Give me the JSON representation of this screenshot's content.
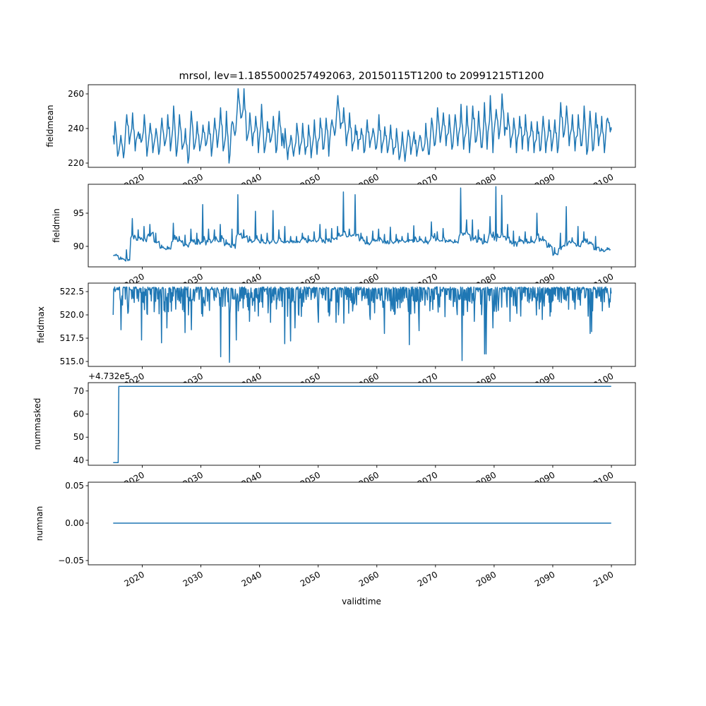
{
  "chart_data": {
    "type": "line",
    "title": "mrsol, lev=1.1855000257492063, 20150115T1200 to 20991215T1200",
    "xlabel": "validtime",
    "xlim": [
      2010.79,
      2104.09
    ],
    "xticks": [
      2020,
      2030,
      2040,
      2050,
      2060,
      2070,
      2080,
      2090,
      2100
    ],
    "xtick_labels": [
      "2020",
      "2030",
      "2040",
      "2050",
      "2060",
      "2070",
      "2080",
      "2090",
      "2100"
    ],
    "line_color": "#1f77b4",
    "subplots": [
      {
        "ylabel": "fieldmean",
        "ylim": [
          217.55,
          265.3
        ],
        "yticks": [
          220,
          240,
          260
        ],
        "ytick_labels": [
          "220",
          "240",
          "260"
        ],
        "encoding": "yearly_peak_trough",
        "start_value": 236,
        "end_value": 239,
        "yearly": [
          [
            244,
            224
          ],
          [
            236,
            223
          ],
          [
            248,
            231
          ],
          [
            249,
            227
          ],
          [
            238,
            232
          ],
          [
            248,
            224
          ],
          [
            243,
            226
          ],
          [
            240,
            225
          ],
          [
            246,
            230
          ],
          [
            248,
            227
          ],
          [
            253,
            224
          ],
          [
            248,
            228
          ],
          [
            240,
            220
          ],
          [
            250,
            228
          ],
          [
            244,
            227
          ],
          [
            242,
            230
          ],
          [
            244,
            224
          ],
          [
            246,
            229
          ],
          [
            252,
            227
          ],
          [
            250,
            220
          ],
          [
            244,
            236
          ],
          [
            263,
            246
          ],
          [
            263,
            233
          ],
          [
            249,
            230
          ],
          [
            247,
            226
          ],
          [
            254,
            226
          ],
          [
            244,
            232
          ],
          [
            247,
            226
          ],
          [
            250,
            230
          ],
          [
            240,
            222
          ],
          [
            236,
            224
          ],
          [
            243,
            225
          ],
          [
            243,
            225
          ],
          [
            242,
            223
          ],
          [
            245,
            225
          ],
          [
            246,
            228
          ],
          [
            246,
            224
          ],
          [
            245,
            236
          ],
          [
            259,
            240
          ],
          [
            252,
            230
          ],
          [
            249,
            227
          ],
          [
            242,
            228
          ],
          [
            240,
            226
          ],
          [
            245,
            229
          ],
          [
            240,
            228
          ],
          [
            248,
            226
          ],
          [
            241,
            226
          ],
          [
            242,
            225
          ],
          [
            240,
            222
          ],
          [
            238,
            221
          ],
          [
            239,
            225
          ],
          [
            238,
            224
          ],
          [
            236,
            227
          ],
          [
            243,
            225
          ],
          [
            246,
            230
          ],
          [
            252,
            232
          ],
          [
            249,
            230
          ],
          [
            248,
            228
          ],
          [
            248,
            230
          ],
          [
            254,
            228
          ],
          [
            253,
            226
          ],
          [
            253,
            232
          ],
          [
            250,
            229
          ],
          [
            255,
            228
          ],
          [
            259,
            226
          ],
          [
            251,
            234
          ],
          [
            260,
            236
          ],
          [
            249,
            229
          ],
          [
            246,
            226
          ],
          [
            247,
            228
          ],
          [
            248,
            227
          ],
          [
            244,
            226
          ],
          [
            244,
            227
          ],
          [
            247,
            226
          ],
          [
            245,
            227
          ],
          [
            245,
            226
          ],
          [
            255,
            235
          ],
          [
            253,
            230
          ],
          [
            248,
            227
          ],
          [
            248,
            230
          ],
          [
            253,
            225
          ],
          [
            250,
            227
          ],
          [
            249,
            230
          ],
          [
            247,
            226
          ],
          [
            246,
            238
          ]
        ]
      },
      {
        "ylabel": "fieldmin",
        "ylim": [
          86.91,
          99.36
        ],
        "yticks": [
          90,
          95
        ],
        "ytick_labels": [
          "90",
          "95"
        ],
        "encoding": "yearly_base_peak",
        "yearly": [
          [
            88.6,
            88.7
          ],
          [
            88.0,
            88.4
          ],
          [
            87.6,
            89.5
          ],
          [
            90.8,
            94.2
          ],
          [
            90.6,
            92.5
          ],
          [
            90.6,
            93.0
          ],
          [
            91.5,
            93.3
          ],
          [
            90.4,
            92.0
          ],
          [
            89.7,
            90.2
          ],
          [
            89.5,
            90.0
          ],
          [
            90.3,
            93.5
          ],
          [
            90.6,
            91.5
          ],
          [
            89.8,
            91.7
          ],
          [
            90.5,
            92.6
          ],
          [
            90.3,
            92.0
          ],
          [
            90.2,
            96.3
          ],
          [
            90.5,
            92.6
          ],
          [
            90.6,
            92.5
          ],
          [
            90.4,
            93.3
          ],
          [
            90.0,
            91.0
          ],
          [
            89.5,
            92.6
          ],
          [
            91.0,
            97.8
          ],
          [
            91.2,
            92.5
          ],
          [
            90.5,
            91.5
          ],
          [
            90.5,
            95.3
          ],
          [
            90.4,
            91.8
          ],
          [
            90.2,
            92.0
          ],
          [
            90.3,
            95.4
          ],
          [
            90.5,
            92.5
          ],
          [
            90.4,
            93.0
          ],
          [
            90.5,
            91.5
          ],
          [
            90.5,
            91.5
          ],
          [
            90.8,
            92.0
          ],
          [
            90.5,
            91.6
          ],
          [
            90.6,
            92.2
          ],
          [
            90.4,
            93.3
          ],
          [
            90.3,
            92.6
          ],
          [
            90.6,
            92.7
          ],
          [
            91.0,
            93.0
          ],
          [
            91.4,
            98.2
          ],
          [
            91.2,
            92.6
          ],
          [
            91.3,
            97.8
          ],
          [
            90.8,
            92.0
          ],
          [
            90.2,
            91.5
          ],
          [
            90.5,
            92.3
          ],
          [
            90.4,
            92.6
          ],
          [
            90.4,
            91.8
          ],
          [
            90.3,
            92.9
          ],
          [
            90.5,
            91.8
          ],
          [
            90.6,
            91.5
          ],
          [
            90.5,
            92.0
          ],
          [
            90.6,
            93.1
          ],
          [
            90.7,
            91.5
          ],
          [
            90.3,
            91.4
          ],
          [
            90.8,
            93.7
          ],
          [
            90.7,
            92.2
          ],
          [
            90.5,
            92.7
          ],
          [
            90.7,
            91.0
          ],
          [
            90.5,
            91.0
          ],
          [
            91.0,
            98.8
          ],
          [
            91.7,
            94.0
          ],
          [
            90.8,
            94.0
          ],
          [
            90.5,
            92.5
          ],
          [
            90.3,
            91.8
          ],
          [
            91.0,
            94.5
          ],
          [
            90.5,
            99.0
          ],
          [
            91.0,
            97.7
          ],
          [
            90.5,
            93.3
          ],
          [
            90.0,
            92.3
          ],
          [
            90.5,
            91.5
          ],
          [
            90.4,
            92.2
          ],
          [
            90.5,
            91.5
          ],
          [
            90.7,
            95.0
          ],
          [
            90.8,
            91.5
          ],
          [
            89.8,
            90.5
          ],
          [
            88.6,
            89.8
          ],
          [
            89.5,
            92.0
          ],
          [
            90.0,
            96.0
          ],
          [
            90.4,
            91.3
          ],
          [
            89.8,
            93.0
          ],
          [
            90.5,
            92.2
          ],
          [
            90.3,
            90.7
          ],
          [
            89.3,
            91.5
          ],
          [
            89.2,
            89.7
          ],
          [
            89.4,
            89.8
          ]
        ]
      },
      {
        "ylabel": "fieldmax",
        "ylim": [
          514.47,
          523.41
        ],
        "yticks": [
          515.0,
          517.5,
          520.0,
          522.5
        ],
        "ytick_labels": [
          "515.0",
          "517.5",
          "520.0",
          "522.5"
        ],
        "encoding": "baseline_with_dips",
        "baseline": 523.0,
        "start_value": 520.0,
        "end_value": 522.3,
        "dips": [
          [
            2016.4,
            518.4
          ],
          [
            2019.9,
            517.3
          ],
          [
            2023.3,
            517.0
          ],
          [
            2024.2,
            518.6
          ],
          [
            2027.3,
            518.1
          ],
          [
            2028.4,
            518.4
          ],
          [
            2033.4,
            515.5
          ],
          [
            2034.9,
            514.9
          ],
          [
            2036.0,
            517.3
          ],
          [
            2038.3,
            519.3
          ],
          [
            2041.9,
            519.2
          ],
          [
            2044.3,
            516.9
          ],
          [
            2045.3,
            517.2
          ],
          [
            2046.0,
            518.6
          ],
          [
            2050.0,
            519.2
          ],
          [
            2053.0,
            519.2
          ],
          [
            2054.4,
            519.1
          ],
          [
            2058.9,
            519.5
          ],
          [
            2061.3,
            518.0
          ],
          [
            2065.5,
            516.8
          ],
          [
            2067.2,
            518.3
          ],
          [
            2071.6,
            519.8
          ],
          [
            2074.5,
            515.1
          ],
          [
            2076.6,
            519.3
          ],
          [
            2078.4,
            515.8
          ],
          [
            2078.6,
            515.8
          ],
          [
            2079.8,
            518.6
          ],
          [
            2082.7,
            519.3
          ],
          [
            2088.2,
            519.5
          ],
          [
            2092.7,
            520.6
          ],
          [
            2096.4,
            518.0
          ],
          [
            2096.6,
            518.2
          ],
          [
            2099.6,
            520.8
          ]
        ]
      },
      {
        "ylabel": "nummasked",
        "offset_text": "+4.732e5",
        "ylim": [
          37.85,
          73.6
        ],
        "yticks": [
          40,
          50,
          60,
          70
        ],
        "ytick_labels": [
          "40",
          "50",
          "60",
          "70"
        ],
        "encoding": "points",
        "points": [
          [
            2015.04,
            39
          ],
          [
            2015.9,
            39
          ],
          [
            2016.0,
            72
          ],
          [
            2099.96,
            72
          ]
        ]
      },
      {
        "ylabel": "numnan",
        "ylim": [
          -0.0557,
          0.0547
        ],
        "yticks": [
          -0.05,
          0.0,
          0.05
        ],
        "ytick_labels": [
          "−0.05",
          "0.00",
          "0.05"
        ],
        "encoding": "points",
        "points": [
          [
            2015.04,
            0
          ],
          [
            2099.96,
            0
          ]
        ]
      }
    ]
  }
}
